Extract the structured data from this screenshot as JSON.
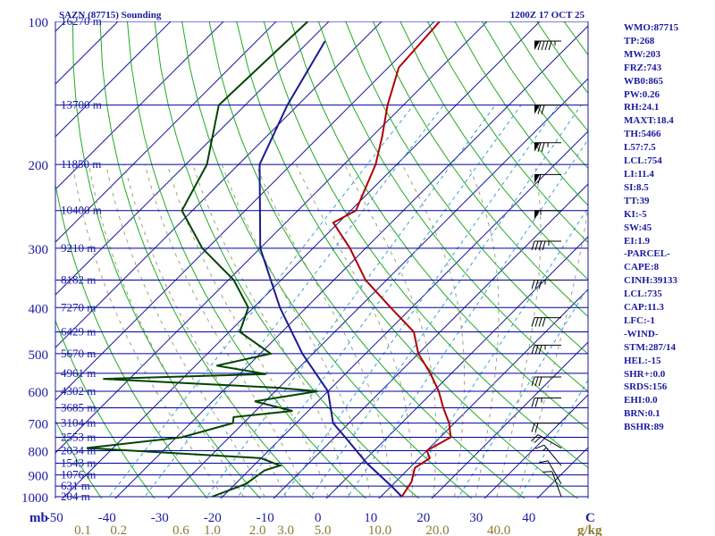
{
  "title_left": "SAZN (87715) Sounding",
  "title_right": "1200Z 17 OCT 25",
  "mb_label": "mb",
  "units": {
    "temp": "C",
    "mix": "g/kg"
  },
  "colors": {
    "isobar": "#0000a0",
    "isotherm": "#1a1aa0",
    "dry_adiabat": "#22aa22",
    "moist_adiabat": "#a0a080",
    "mixing_ratio": "#3aa0d0",
    "temperature": "#b00000",
    "dewpoint": "#004400",
    "parcel": "#1a1a90",
    "label": "#1a1aa0",
    "mix_label": "#8a7a30"
  },
  "indices": [
    "WMO:87715",
    "TP:268",
    "MW:203",
    "FRZ:743",
    "WB0:865",
    "PW:0.26",
    "RH:24.1",
    "MAXT:18.4",
    "TH:5466",
    "L57:7.5",
    "LCL:754",
    "LI:11.4",
    "SI:8.5",
    "TT:39",
    "KI:-5",
    "SW:45",
    "EI:1.9",
    "-PARCEL-",
    "CAPE:8",
    "CINH:39133",
    "LCL:735",
    "CAP:11.3",
    "LFC:-1",
    "-WIND-",
    "STM:287/14",
    "HEL:-15",
    "SHR+:0.0",
    "SRDS:156",
    "EHI:0.0",
    "BRN:0.1",
    "BSHR:89"
  ],
  "chart_data": {
    "type": "skew-t",
    "pressure_ticks": [
      {
        "p": 100,
        "label": "100"
      },
      {
        "p": 200,
        "label": "200"
      },
      {
        "p": 300,
        "label": "300"
      },
      {
        "p": 400,
        "label": "400"
      },
      {
        "p": 500,
        "label": "500"
      },
      {
        "p": 600,
        "label": "600"
      },
      {
        "p": 700,
        "label": "700"
      },
      {
        "p": 800,
        "label": "800"
      },
      {
        "p": 900,
        "label": "900"
      },
      {
        "p": 1000,
        "label": "1000"
      }
    ],
    "height_labels": [
      {
        "p": 100,
        "label": "16270 m"
      },
      {
        "p": 150,
        "label": "13700 m"
      },
      {
        "p": 200,
        "label": "11850 m"
      },
      {
        "p": 250,
        "label": "10400 m"
      },
      {
        "p": 300,
        "label": "9210 m"
      },
      {
        "p": 350,
        "label": "8182 m"
      },
      {
        "p": 400,
        "label": "7270 m"
      },
      {
        "p": 450,
        "label": "6429 m"
      },
      {
        "p": 500,
        "label": "5670 m"
      },
      {
        "p": 550,
        "label": "4961 m"
      },
      {
        "p": 600,
        "label": "4302 m"
      },
      {
        "p": 650,
        "label": "3685 m"
      },
      {
        "p": 700,
        "label": "3104 m"
      },
      {
        "p": 750,
        "label": "2553 m"
      },
      {
        "p": 800,
        "label": "2034 m"
      },
      {
        "p": 850,
        "label": "1543 m"
      },
      {
        "p": 900,
        "label": "1076 m"
      },
      {
        "p": 950,
        "label": "631 m"
      },
      {
        "p": 1000,
        "label": "204 m"
      }
    ],
    "temp_ticks": [
      {
        "t": -50,
        "label": "-50"
      },
      {
        "t": -40,
        "label": "-40"
      },
      {
        "t": -30,
        "label": "-30"
      },
      {
        "t": -20,
        "label": "-20"
      },
      {
        "t": -10,
        "label": "-10"
      },
      {
        "t": 0,
        "label": "0"
      },
      {
        "t": 10,
        "label": "10"
      },
      {
        "t": 20,
        "label": "20"
      },
      {
        "t": 30,
        "label": "30"
      },
      {
        "t": 40,
        "label": "40"
      }
    ],
    "mixing_ratios": [
      {
        "w": 0.1,
        "label": "0.1"
      },
      {
        "w": 0.2,
        "label": "0.2"
      },
      {
        "w": 0.6,
        "label": "0.6"
      },
      {
        "w": 1.0,
        "label": "1.0"
      },
      {
        "w": 2.0,
        "label": "2.0"
      },
      {
        "w": 3.0,
        "label": "3.0"
      },
      {
        "w": 5.0,
        "label": "5.0"
      },
      {
        "w": 10.0,
        "label": "10.0"
      },
      {
        "w": 20.0,
        "label": "20.0"
      },
      {
        "w": 40.0,
        "label": "40.0"
      }
    ],
    "pressure_range": [
      100,
      1050
    ],
    "temperature": [
      {
        "p": 100,
        "t": -69
      },
      {
        "p": 125,
        "t": -68
      },
      {
        "p": 150,
        "t": -63
      },
      {
        "p": 175,
        "t": -58
      },
      {
        "p": 200,
        "t": -54
      },
      {
        "p": 250,
        "t": -49
      },
      {
        "p": 265,
        "t": -51
      },
      {
        "p": 300,
        "t": -43
      },
      {
        "p": 350,
        "t": -34
      },
      {
        "p": 400,
        "t": -24
      },
      {
        "p": 450,
        "t": -15
      },
      {
        "p": 500,
        "t": -10
      },
      {
        "p": 550,
        "t": -4
      },
      {
        "p": 600,
        "t": 1
      },
      {
        "p": 650,
        "t": 5
      },
      {
        "p": 700,
        "t": 9
      },
      {
        "p": 750,
        "t": 12
      },
      {
        "p": 800,
        "t": 10
      },
      {
        "p": 830,
        "t": 12
      },
      {
        "p": 870,
        "t": 11
      },
      {
        "p": 930,
        "t": 13
      },
      {
        "p": 1000,
        "t": 14
      }
    ],
    "dewpoint": [
      {
        "p": 100,
        "t": -94
      },
      {
        "p": 150,
        "t": -95
      },
      {
        "p": 200,
        "t": -86
      },
      {
        "p": 250,
        "t": -82
      },
      {
        "p": 300,
        "t": -71
      },
      {
        "p": 350,
        "t": -59
      },
      {
        "p": 400,
        "t": -51
      },
      {
        "p": 450,
        "t": -48
      },
      {
        "p": 500,
        "t": -38
      },
      {
        "p": 530,
        "t": -46
      },
      {
        "p": 552,
        "t": -35
      },
      {
        "p": 565,
        "t": -65
      },
      {
        "p": 590,
        "t": -30
      },
      {
        "p": 600,
        "t": -22
      },
      {
        "p": 630,
        "t": -32
      },
      {
        "p": 660,
        "t": -23
      },
      {
        "p": 680,
        "t": -33
      },
      {
        "p": 700,
        "t": -32
      },
      {
        "p": 750,
        "t": -39
      },
      {
        "p": 790,
        "t": -55
      },
      {
        "p": 830,
        "t": -20
      },
      {
        "p": 860,
        "t": -15
      },
      {
        "p": 880,
        "t": -17
      },
      {
        "p": 940,
        "t": -18
      },
      {
        "p": 1000,
        "t": -22
      }
    ],
    "parcel": [
      {
        "p": 1000,
        "t": 14
      },
      {
        "p": 950,
        "t": 10
      },
      {
        "p": 850,
        "t": 1
      },
      {
        "p": 750,
        "t": -8
      },
      {
        "p": 700,
        "t": -13
      },
      {
        "p": 600,
        "t": -20
      },
      {
        "p": 500,
        "t": -32
      },
      {
        "p": 400,
        "t": -45
      },
      {
        "p": 300,
        "t": -60
      },
      {
        "p": 200,
        "t": -76
      },
      {
        "p": 150,
        "t": -82
      },
      {
        "p": 110,
        "t": -87
      }
    ],
    "wind_barbs": [
      {
        "p": 110,
        "dir": 270,
        "spd": 95
      },
      {
        "p": 150,
        "dir": 270,
        "spd": 70
      },
      {
        "p": 180,
        "dir": 270,
        "spd": 75
      },
      {
        "p": 210,
        "dir": 270,
        "spd": 60
      },
      {
        "p": 250,
        "dir": 270,
        "spd": 55
      },
      {
        "p": 290,
        "dir": 270,
        "spd": 45
      },
      {
        "p": 350,
        "dir": 270,
        "spd": 35
      },
      {
        "p": 420,
        "dir": 270,
        "spd": 40
      },
      {
        "p": 480,
        "dir": 270,
        "spd": 35
      },
      {
        "p": 560,
        "dir": 270,
        "spd": 30
      },
      {
        "p": 620,
        "dir": 270,
        "spd": 25
      },
      {
        "p": 700,
        "dir": 270,
        "spd": 20
      },
      {
        "p": 790,
        "dir": 300,
        "spd": 20
      },
      {
        "p": 860,
        "dir": 320,
        "spd": 15
      },
      {
        "p": 940,
        "dir": 330,
        "spd": 10
      },
      {
        "p": 1000,
        "dir": 340,
        "spd": 10
      }
    ]
  }
}
